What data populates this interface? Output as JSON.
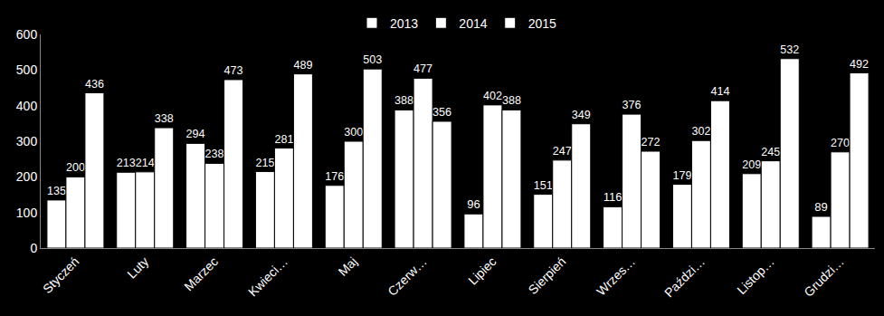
{
  "chart_data": {
    "type": "bar",
    "categories": [
      "Styczeń",
      "Luty",
      "Marzec",
      "Kwieci…",
      "Maj",
      "Czerw…",
      "Lipiec",
      "Sierpień",
      "Wrzes…",
      "Paździ…",
      "Listop…",
      "Grudzi…"
    ],
    "series": [
      {
        "name": "2013",
        "color": "#ffffff",
        "values": [
          135,
          213,
          294,
          215,
          176,
          388,
          96,
          151,
          116,
          179,
          209,
          89
        ]
      },
      {
        "name": "2014",
        "color": "#ffffff",
        "values": [
          200,
          214,
          238,
          281,
          300,
          477,
          402,
          247,
          376,
          302,
          245,
          270
        ]
      },
      {
        "name": "2015",
        "color": "#ffffff",
        "values": [
          436,
          338,
          473,
          489,
          503,
          356,
          388,
          349,
          272,
          414,
          532,
          492
        ]
      }
    ],
    "ylim": [
      0,
      600
    ],
    "yticks": [
      0,
      100,
      200,
      300,
      400,
      500,
      600
    ],
    "grid": false,
    "legend": "top",
    "data_labels": true
  }
}
